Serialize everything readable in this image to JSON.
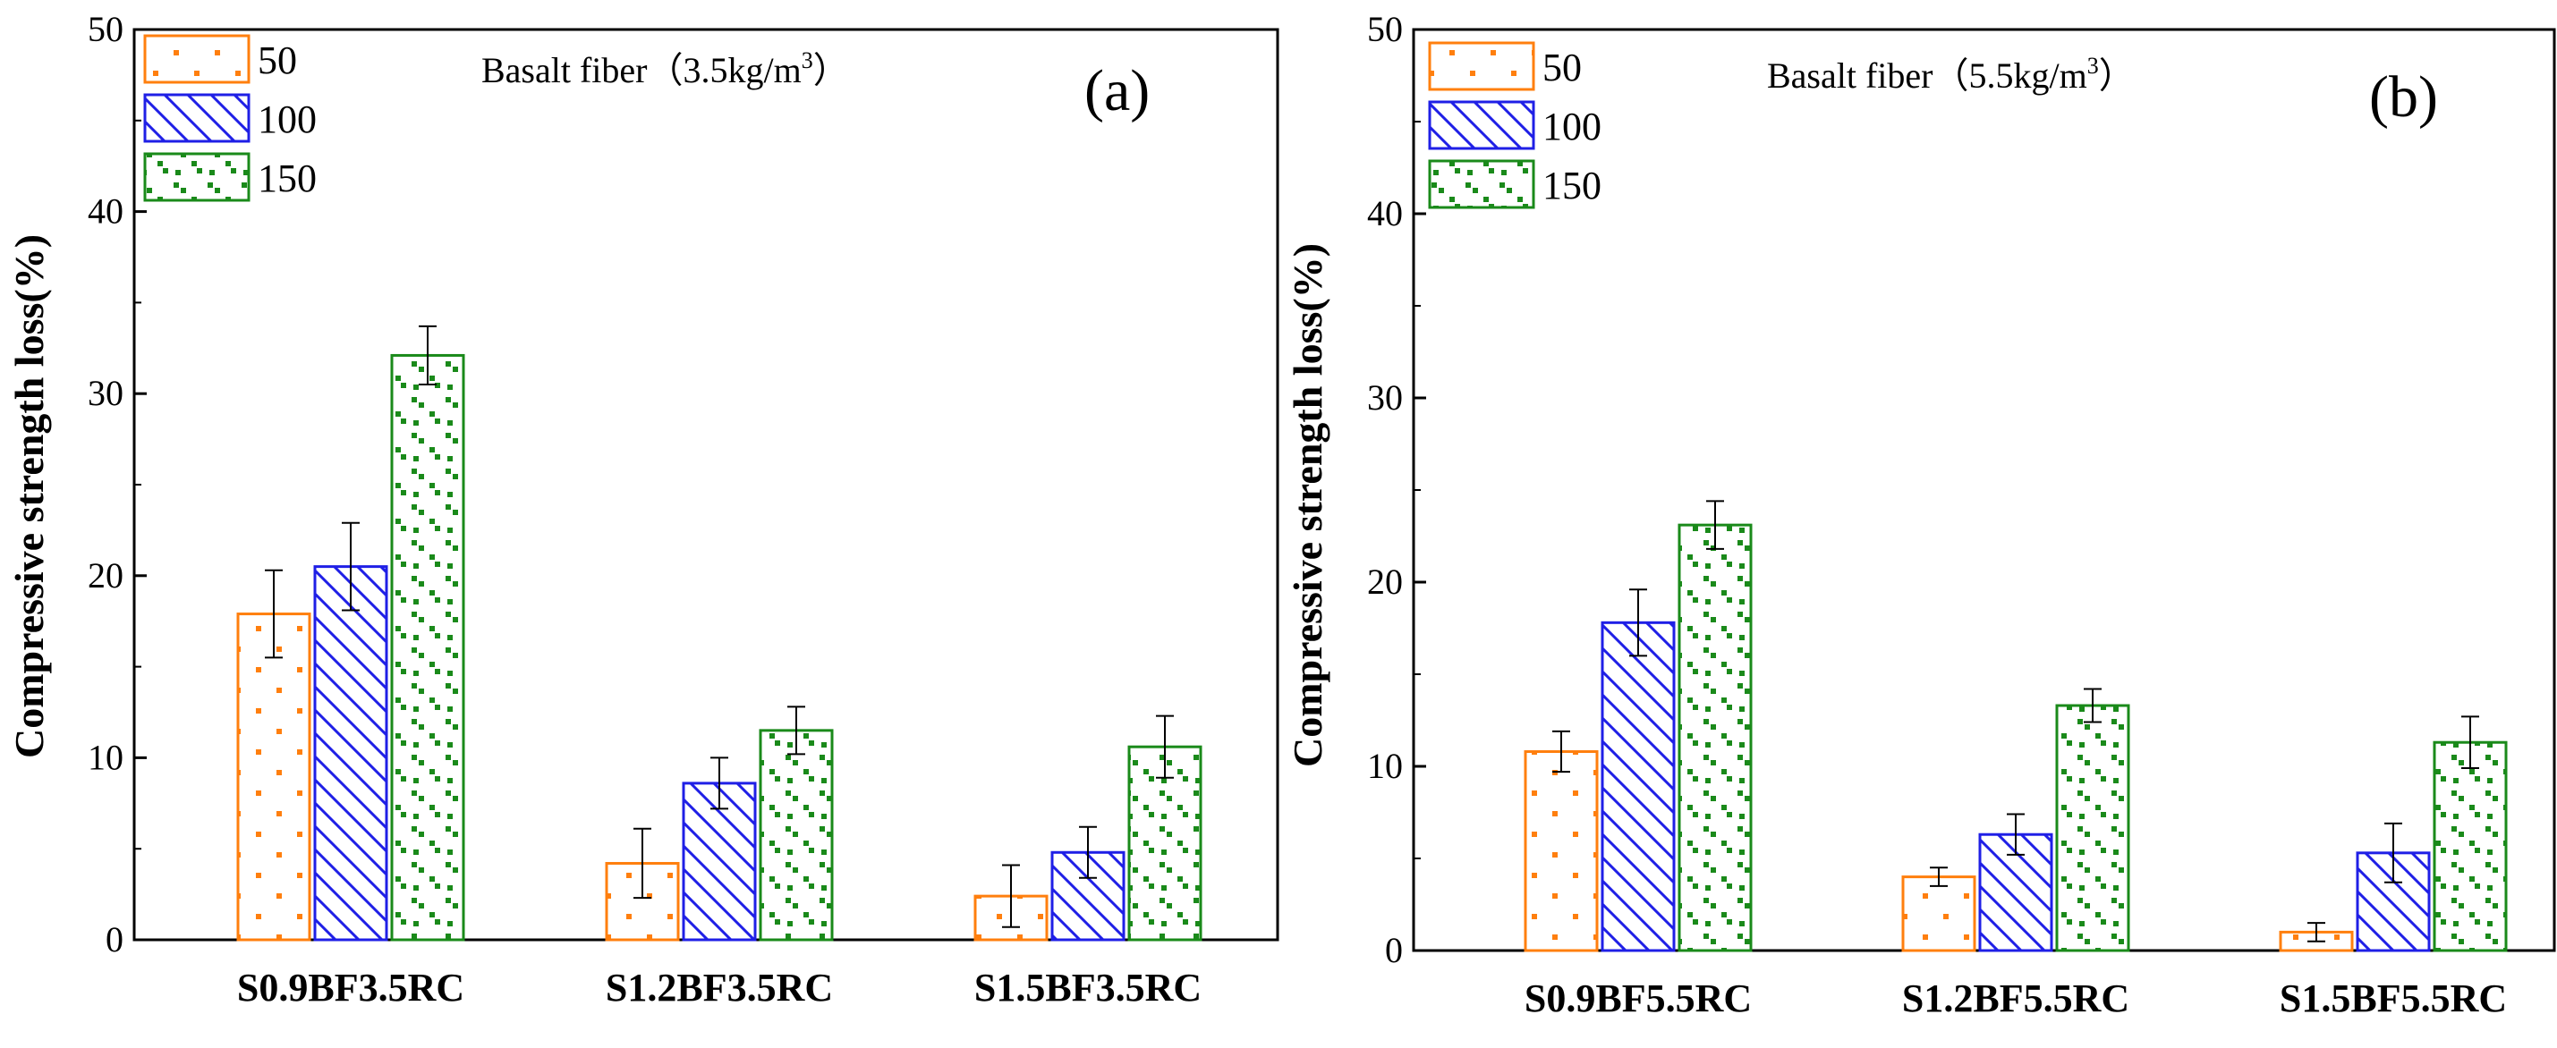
{
  "chart_data": [
    {
      "type": "bar",
      "panel_label": "(a)",
      "title_prefix": "Basalt fiber（3.5kg/m",
      "title_sup": "3",
      "title_suffix": "）",
      "ylabel": "Compressive strength loss(%)",
      "xlabel": "",
      "ylim": [
        0,
        50
      ],
      "yticks": [
        "0",
        "10",
        "20",
        "30",
        "40",
        "50"
      ],
      "categories": [
        "S0.9BF3.5RC",
        "S1.2BF3.5RC",
        "S1.5BF3.5RC"
      ],
      "series": [
        {
          "name": "50",
          "values": [
            17.9,
            4.2,
            2.4
          ],
          "errors": [
            2.4,
            1.9,
            1.7
          ]
        },
        {
          "name": "100",
          "values": [
            20.5,
            8.6,
            4.8
          ],
          "errors": [
            2.4,
            1.4,
            1.4
          ]
        },
        {
          "name": "150",
          "values": [
            32.1,
            11.5,
            10.6
          ],
          "errors": [
            1.6,
            1.3,
            1.7
          ]
        }
      ],
      "legend_position": "top-left"
    },
    {
      "type": "bar",
      "panel_label": "(b)",
      "title_prefix": "Basalt fiber（5.5kg/m",
      "title_sup": "3",
      "title_suffix": "）",
      "ylabel": "Compressive strength loss(%)",
      "xlabel": "",
      "ylim": [
        0,
        50
      ],
      "yticks": [
        "0",
        "10",
        "20",
        "30",
        "40",
        "50"
      ],
      "categories": [
        "S0.9BF5.5RC",
        "S1.2BF5.5RC",
        "S1.5BF5.5RC"
      ],
      "series": [
        {
          "name": "50",
          "values": [
            10.8,
            4.0,
            1.0
          ],
          "errors": [
            1.1,
            0.5,
            0.5
          ]
        },
        {
          "name": "100",
          "values": [
            17.8,
            6.3,
            5.3
          ],
          "errors": [
            1.8,
            1.1,
            1.6
          ]
        },
        {
          "name": "150",
          "values": [
            23.1,
            13.3,
            11.3
          ],
          "errors": [
            1.3,
            0.9,
            1.4
          ]
        }
      ],
      "legend_position": "top-left"
    }
  ],
  "colors": {
    "series_50": "#ff7f0e",
    "series_100": "#1f1fe6",
    "series_150": "#1a8a1a"
  }
}
